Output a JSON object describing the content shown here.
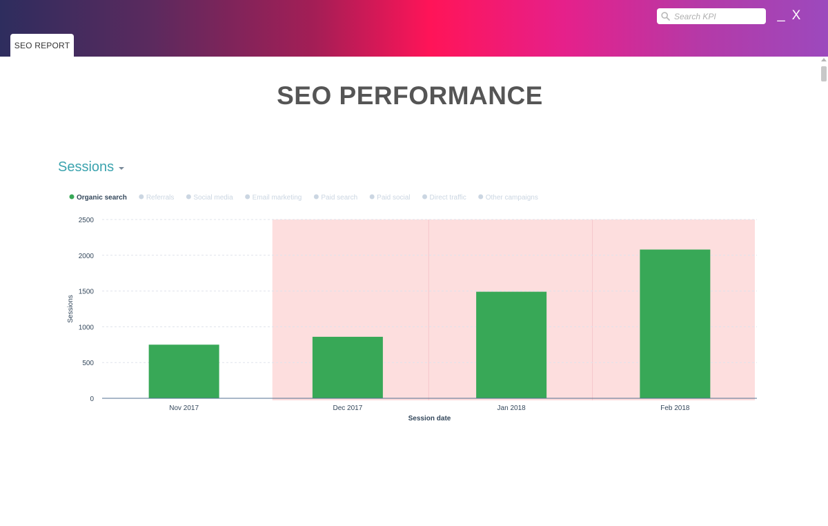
{
  "window": {
    "tab_label": "SEO REPORT",
    "search_placeholder": "Search KPI",
    "minimize_label": "_",
    "close_label": "X"
  },
  "page": {
    "title": "SEO PERFORMANCE",
    "metric_selector": "Sessions"
  },
  "colors": {
    "series_active": "#38a857",
    "legend_inactive": "#cbd6e2",
    "highlight_band": "#fddede",
    "axis": "#516f90",
    "grid": "#dfe3eb"
  },
  "chart_data": {
    "type": "bar",
    "title": "",
    "xlabel": "Session date",
    "ylabel": "Sessions",
    "categories": [
      "Nov 2017",
      "Dec 2017",
      "Jan 2018",
      "Feb 2018"
    ],
    "series": [
      {
        "name": "Organic search",
        "values": [
          750,
          860,
          1490,
          2080
        ],
        "active": true
      }
    ],
    "legend": [
      {
        "name": "Organic search",
        "active": true
      },
      {
        "name": "Referrals",
        "active": false
      },
      {
        "name": "Social media",
        "active": false
      },
      {
        "name": "Email marketing",
        "active": false
      },
      {
        "name": "Paid search",
        "active": false
      },
      {
        "name": "Paid social",
        "active": false
      },
      {
        "name": "Direct traffic",
        "active": false
      },
      {
        "name": "Other campaigns",
        "active": false
      }
    ],
    "legend_position": "top-left",
    "yticks": [
      0,
      500,
      1000,
      1500,
      2000,
      2500
    ],
    "ylim": [
      0,
      2500
    ],
    "grid": true,
    "highlighted_categories": [
      "Dec 2017",
      "Jan 2018",
      "Feb 2018"
    ]
  }
}
